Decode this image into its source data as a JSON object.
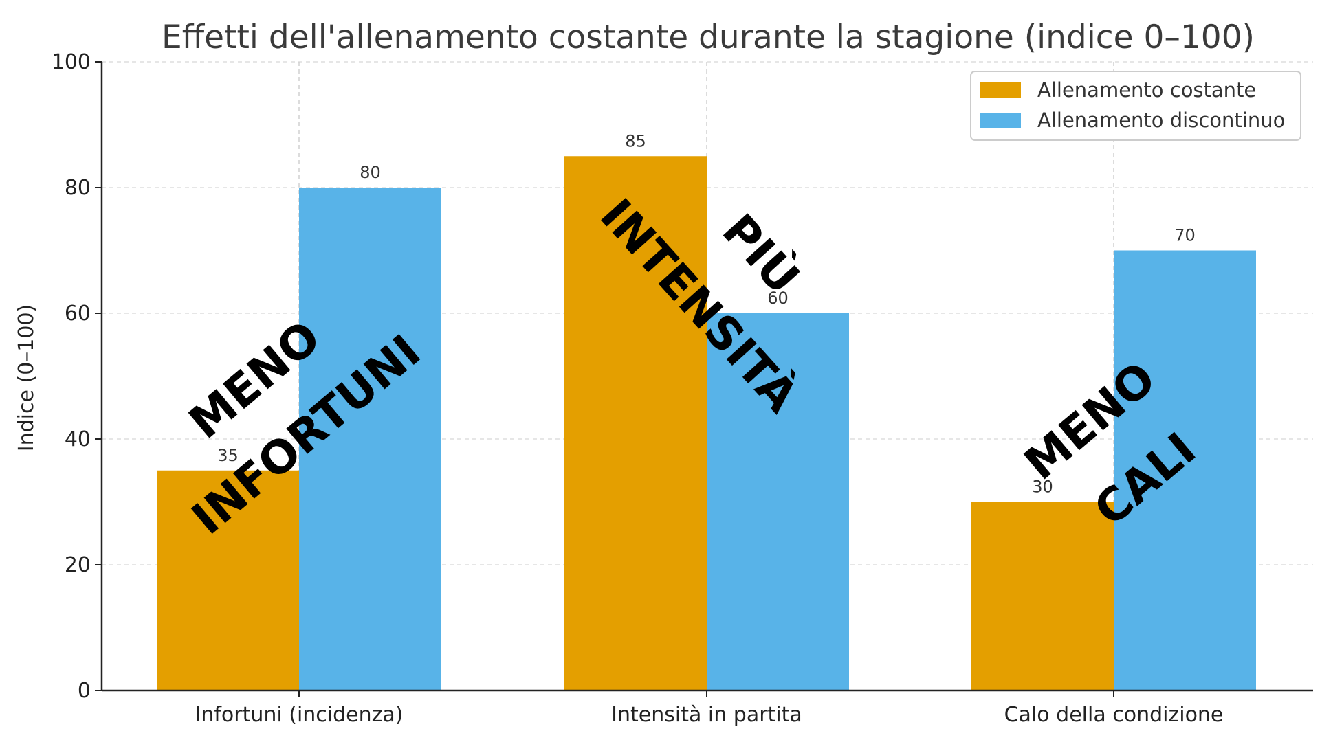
{
  "chart_data": {
    "type": "bar",
    "title": "Effetti dell'allenamento costante durante la stagione (indice 0–100)",
    "xlabel": "",
    "ylabel": "Indice (0–100)",
    "ylim": [
      0,
      100
    ],
    "yticks": [
      "0",
      "20",
      "40",
      "60",
      "80",
      "100"
    ],
    "categories": [
      "Infortuni (incidenza)",
      "Intensità in partita",
      "Calo della condizione"
    ],
    "series": [
      {
        "name": "Allenamento costante",
        "values": [
          35,
          85,
          30
        ],
        "color": "#E49F00"
      },
      {
        "name": "Allenamento discontinuo",
        "values": [
          80,
          60,
          70
        ],
        "color": "#58B3E8"
      }
    ],
    "data_labels": {
      "costante": [
        "35",
        "85",
        "30"
      ],
      "discontinuo": [
        "80",
        "60",
        "70"
      ]
    },
    "grid": true,
    "legend_position": "top-right",
    "annotations": [
      {
        "line1": "MENO",
        "line2": "INFORTUNI"
      },
      {
        "line1": "PIÙ",
        "line2": "INTENSITÀ"
      },
      {
        "line1": "MENO",
        "line2": "CALI"
      }
    ]
  }
}
